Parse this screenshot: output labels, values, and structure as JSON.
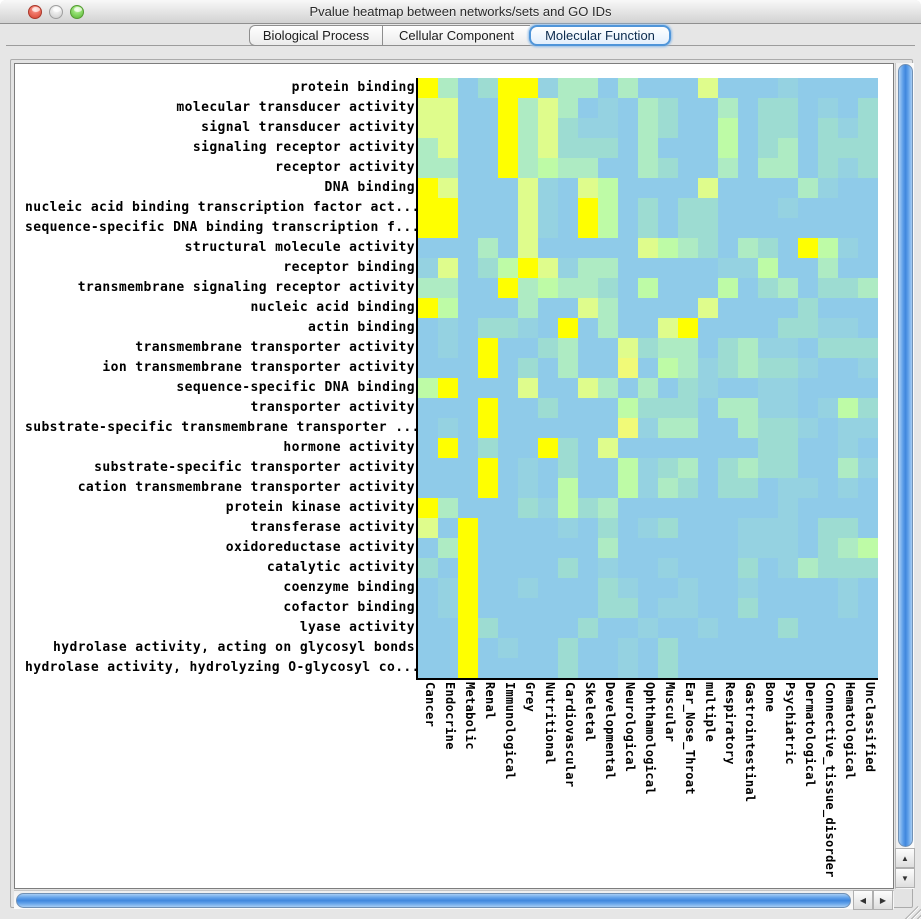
{
  "window": {
    "title": "Pvalue heatmap between networks/sets and GO IDs",
    "traffic_lights": [
      "close",
      "minimize",
      "zoom"
    ]
  },
  "tabs": [
    {
      "label": "Biological Process",
      "selected": false,
      "width": 133
    },
    {
      "label": "Cellular Component",
      "selected": false,
      "width": 148
    },
    {
      "label": "Molecular Function",
      "selected": true,
      "width": 142
    }
  ],
  "icons": {
    "scroll_up": "▲",
    "scroll_down": "▼",
    "scroll_left": "◀",
    "scroll_right": "▶"
  },
  "chart_data": {
    "type": "heatmap",
    "title": "Pvalue heatmap between networks/sets and GO IDs",
    "tab_shown": "Molecular Function",
    "rows": [
      "protein binding",
      "molecular transducer activity",
      "signal transducer activity",
      "signaling receptor activity",
      "receptor activity",
      "DNA binding",
      "nucleic acid binding transcription factor act...",
      "sequence-specific DNA binding transcription f...",
      "structural molecule activity",
      "receptor binding",
      "transmembrane signaling receptor activity",
      "nucleic acid binding",
      "actin binding",
      "transmembrane transporter activity",
      "ion transmembrane transporter activity",
      "sequence-specific DNA binding",
      "transporter activity",
      "substrate-specific transmembrane transporter ...",
      "hormone activity",
      "substrate-specific transporter activity",
      "cation transmembrane transporter activity",
      "protein kinase activity",
      "transferase activity",
      "oxidoreductase activity",
      "catalytic activity",
      "coenzyme binding",
      "cofactor binding",
      "lyase activity",
      "hydrolase activity, acting on glycosyl bonds",
      "hydrolase activity, hydrolyzing O-glycosyl co..."
    ],
    "columns": [
      "Cancer",
      "Endocrine",
      "Metabolic",
      "Renal",
      "Immunological",
      "Grey",
      "Nutritional",
      "Cardiovascular",
      "Skeletal",
      "Developmental",
      "Neurological",
      "Ophthamological",
      "Muscular",
      "Ear_Nose_Throat",
      "multiple",
      "Respiratory",
      "Gastrointestinal",
      "Bone",
      "Psychiatric",
      "Dermatological",
      "Connective_tissue_disorder",
      "Hematological",
      "Unclassified"
    ],
    "palette": [
      "#8fcbe9",
      "#95d2e1",
      "#9ddcd2",
      "#aeebc3",
      "#befba6",
      "#dffc8c",
      "#f1fa78",
      "#ffff00"
    ],
    "values": [
      [
        7,
        3,
        0,
        2,
        7,
        7,
        1,
        3,
        3,
        0,
        3,
        0,
        0,
        0,
        5,
        0,
        0,
        0,
        1,
        0,
        0,
        0,
        0
      ],
      [
        5,
        5,
        0,
        0,
        7,
        3,
        5,
        3,
        0,
        1,
        0,
        3,
        2,
        0,
        0,
        3,
        0,
        2,
        2,
        0,
        1,
        0,
        2
      ],
      [
        5,
        5,
        0,
        0,
        7,
        3,
        5,
        2,
        1,
        1,
        0,
        3,
        2,
        0,
        0,
        4,
        0,
        2,
        2,
        0,
        2,
        1,
        2
      ],
      [
        3,
        5,
        0,
        0,
        7,
        3,
        5,
        2,
        2,
        2,
        0,
        3,
        0,
        0,
        0,
        4,
        0,
        2,
        3,
        0,
        2,
        2,
        2
      ],
      [
        3,
        3,
        0,
        0,
        7,
        3,
        4,
        3,
        3,
        0,
        0,
        3,
        2,
        0,
        0,
        3,
        0,
        3,
        3,
        0,
        2,
        1,
        2
      ],
      [
        7,
        5,
        0,
        0,
        0,
        5,
        1,
        0,
        5,
        4,
        0,
        0,
        0,
        0,
        5,
        0,
        0,
        0,
        0,
        3,
        1,
        0,
        0
      ],
      [
        7,
        7,
        0,
        0,
        0,
        5,
        1,
        0,
        7,
        4,
        0,
        2,
        0,
        2,
        2,
        0,
        0,
        0,
        1,
        0,
        0,
        0,
        0
      ],
      [
        7,
        7,
        0,
        0,
        0,
        5,
        1,
        0,
        7,
        4,
        0,
        2,
        0,
        2,
        2,
        0,
        0,
        0,
        0,
        0,
        0,
        0,
        0
      ],
      [
        0,
        0,
        0,
        3,
        0,
        5,
        0,
        0,
        0,
        0,
        0,
        5,
        4,
        3,
        2,
        0,
        3,
        2,
        0,
        7,
        4,
        1,
        0
      ],
      [
        1,
        5,
        0,
        2,
        4,
        7,
        5,
        1,
        3,
        3,
        0,
        0,
        0,
        0,
        0,
        1,
        1,
        4,
        0,
        0,
        3,
        0,
        0
      ],
      [
        3,
        3,
        0,
        0,
        7,
        3,
        4,
        3,
        3,
        2,
        0,
        4,
        0,
        0,
        0,
        4,
        0,
        2,
        3,
        0,
        2,
        2,
        3
      ],
      [
        7,
        4,
        0,
        0,
        0,
        3,
        0,
        0,
        5,
        3,
        0,
        0,
        0,
        0,
        5,
        0,
        0,
        0,
        0,
        2,
        0,
        0,
        0
      ],
      [
        0,
        1,
        0,
        2,
        2,
        1,
        0,
        7,
        0,
        3,
        0,
        0,
        5,
        7,
        0,
        0,
        0,
        0,
        2,
        2,
        1,
        1,
        0
      ],
      [
        0,
        1,
        0,
        7,
        0,
        0,
        2,
        3,
        0,
        0,
        5,
        2,
        3,
        3,
        0,
        2,
        3,
        1,
        1,
        0,
        2,
        2,
        2
      ],
      [
        0,
        0,
        0,
        7,
        0,
        2,
        0,
        3,
        0,
        0,
        6,
        0,
        4,
        3,
        1,
        2,
        3,
        2,
        2,
        1,
        0,
        0,
        1
      ],
      [
        4,
        7,
        0,
        0,
        0,
        5,
        0,
        0,
        5,
        3,
        0,
        3,
        0,
        2,
        1,
        0,
        0,
        1,
        1,
        0,
        0,
        0,
        0
      ],
      [
        0,
        0,
        0,
        7,
        0,
        0,
        2,
        0,
        0,
        0,
        4,
        2,
        2,
        2,
        0,
        3,
        3,
        1,
        1,
        0,
        1,
        4,
        2
      ],
      [
        0,
        1,
        0,
        7,
        0,
        0,
        0,
        0,
        0,
        0,
        6,
        1,
        3,
        3,
        0,
        0,
        3,
        2,
        2,
        1,
        0,
        1,
        1
      ],
      [
        0,
        7,
        0,
        2,
        0,
        0,
        7,
        2,
        0,
        5,
        0,
        0,
        0,
        0,
        0,
        0,
        0,
        2,
        2,
        0,
        0,
        1,
        0
      ],
      [
        0,
        0,
        0,
        7,
        0,
        1,
        0,
        2,
        0,
        0,
        4,
        1,
        2,
        3,
        0,
        2,
        3,
        2,
        2,
        0,
        0,
        3,
        1
      ],
      [
        0,
        0,
        0,
        7,
        0,
        1,
        0,
        4,
        0,
        0,
        4,
        1,
        3,
        2,
        0,
        2,
        2,
        0,
        1,
        1,
        0,
        1,
        0
      ],
      [
        7,
        3,
        0,
        0,
        0,
        2,
        1,
        4,
        2,
        3,
        0,
        0,
        0,
        0,
        0,
        0,
        0,
        0,
        1,
        0,
        0,
        0,
        0
      ],
      [
        5,
        0,
        7,
        0,
        0,
        0,
        0,
        1,
        0,
        2,
        0,
        1,
        2,
        0,
        0,
        0,
        1,
        1,
        1,
        0,
        2,
        2,
        0
      ],
      [
        0,
        3,
        7,
        0,
        0,
        0,
        0,
        0,
        0,
        3,
        0,
        0,
        0,
        0,
        0,
        0,
        1,
        1,
        1,
        0,
        2,
        3,
        4
      ],
      [
        2,
        0,
        7,
        0,
        0,
        0,
        0,
        2,
        0,
        1,
        0,
        0,
        1,
        0,
        0,
        0,
        2,
        0,
        1,
        3,
        2,
        2,
        2
      ],
      [
        0,
        1,
        7,
        0,
        0,
        1,
        0,
        0,
        0,
        2,
        1,
        0,
        0,
        1,
        0,
        0,
        1,
        0,
        0,
        0,
        0,
        1,
        0
      ],
      [
        0,
        1,
        7,
        0,
        0,
        0,
        0,
        0,
        0,
        2,
        2,
        0,
        1,
        1,
        0,
        0,
        2,
        0,
        0,
        0,
        0,
        1,
        0
      ],
      [
        0,
        0,
        7,
        2,
        0,
        0,
        0,
        0,
        2,
        0,
        0,
        1,
        0,
        0,
        1,
        0,
        0,
        0,
        2,
        0,
        0,
        0,
        0
      ],
      [
        0,
        0,
        7,
        0,
        1,
        0,
        0,
        2,
        0,
        0,
        1,
        0,
        2,
        0,
        0,
        0,
        0,
        0,
        0,
        0,
        0,
        0,
        0
      ],
      [
        0,
        0,
        7,
        0,
        0,
        0,
        0,
        2,
        0,
        0,
        1,
        0,
        2,
        0,
        0,
        0,
        0,
        0,
        0,
        0,
        0,
        0,
        0
      ]
    ]
  }
}
